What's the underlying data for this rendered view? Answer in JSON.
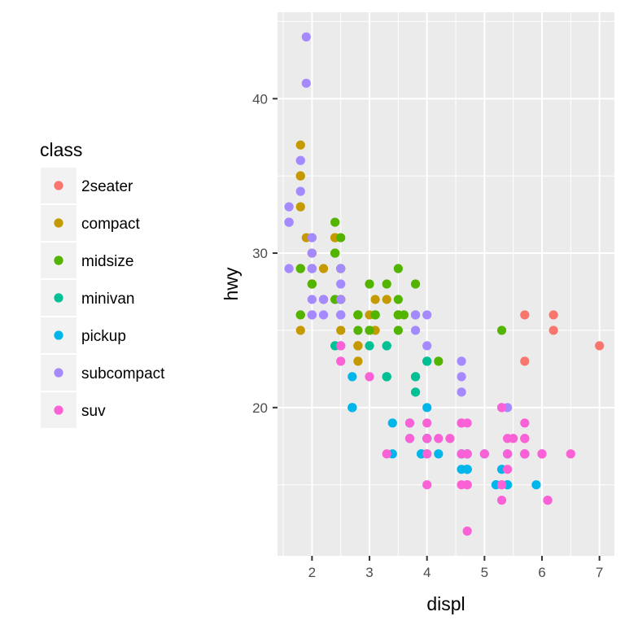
{
  "chart_data": {
    "type": "scatter",
    "xlabel": "displ",
    "ylabel": "hwy",
    "xlim": [
      1.4,
      7.26
    ],
    "ylim": [
      10.4,
      45.6
    ],
    "x_ticks": [
      2,
      3,
      4,
      5,
      6,
      7
    ],
    "y_ticks": [
      20,
      30,
      40
    ],
    "grid": true,
    "legend_title": "class",
    "legend_position": "left",
    "series": [
      {
        "name": "2seater",
        "color": "#F8766D",
        "points": [
          [
            5.7,
            26
          ],
          [
            5.7,
            23
          ],
          [
            6.2,
            26
          ],
          [
            6.2,
            25
          ],
          [
            7.0,
            24
          ]
        ]
      },
      {
        "name": "compact",
        "color": "#C49A00",
        "points": [
          [
            1.8,
            29
          ],
          [
            1.8,
            29
          ],
          [
            2.0,
            31
          ],
          [
            2.0,
            30
          ],
          [
            2.8,
            26
          ],
          [
            2.8,
            26
          ],
          [
            3.1,
            27
          ],
          [
            1.8,
            26
          ],
          [
            1.8,
            25
          ],
          [
            2.0,
            28
          ],
          [
            2.0,
            28
          ],
          [
            2.8,
            24
          ],
          [
            2.8,
            24
          ],
          [
            3.1,
            25
          ],
          [
            2.2,
            27
          ],
          [
            2.2,
            29
          ],
          [
            2.4,
            31
          ],
          [
            2.4,
            31
          ],
          [
            3.0,
            26
          ],
          [
            1.8,
            37
          ],
          [
            1.8,
            35
          ],
          [
            1.9,
            31
          ],
          [
            2.0,
            29
          ],
          [
            2.4,
            31
          ],
          [
            2.4,
            30
          ],
          [
            2.5,
            27
          ],
          [
            2.5,
            27
          ],
          [
            1.8,
            33
          ],
          [
            1.8,
            35
          ],
          [
            2.0,
            26
          ],
          [
            2.5,
            25
          ],
          [
            2.5,
            27
          ],
          [
            2.8,
            24
          ],
          [
            2.8,
            23
          ],
          [
            3.3,
            27
          ],
          [
            2.0,
            30
          ],
          [
            2.8,
            26
          ]
        ]
      },
      {
        "name": "midsize",
        "color": "#53B400",
        "points": [
          [
            2.8,
            26
          ],
          [
            3.1,
            26
          ],
          [
            4.2,
            23
          ],
          [
            2.4,
            30
          ],
          [
            2.4,
            32
          ],
          [
            3.1,
            26
          ],
          [
            3.5,
            26
          ],
          [
            3.6,
            26
          ],
          [
            2.5,
            29
          ],
          [
            2.5,
            29
          ],
          [
            3.5,
            29
          ],
          [
            3.3,
            28
          ],
          [
            3.5,
            26
          ],
          [
            3.8,
            26
          ],
          [
            3.8,
            28
          ],
          [
            3.0,
            25
          ],
          [
            5.3,
            25
          ],
          [
            2.4,
            27
          ],
          [
            2.4,
            30
          ],
          [
            2.5,
            31
          ],
          [
            3.0,
            28
          ],
          [
            3.5,
            25
          ],
          [
            3.5,
            27
          ],
          [
            1.8,
            29
          ],
          [
            2.0,
            28
          ],
          [
            2.0,
            29
          ],
          [
            2.8,
            26
          ],
          [
            3.1,
            26
          ],
          [
            1.8,
            26
          ],
          [
            2.8,
            25
          ],
          [
            3.0,
            25
          ],
          [
            3.5,
            26
          ]
        ]
      },
      {
        "name": "minivan",
        "color": "#00C094",
        "points": [
          [
            2.4,
            24
          ],
          [
            3.0,
            24
          ],
          [
            3.3,
            22
          ],
          [
            3.3,
            22
          ],
          [
            3.3,
            24
          ],
          [
            3.3,
            24
          ],
          [
            3.8,
            22
          ],
          [
            3.8,
            22
          ],
          [
            3.8,
            21
          ],
          [
            4.0,
            23
          ],
          [
            4.0,
            23
          ]
        ]
      },
      {
        "name": "pickup",
        "color": "#00B6EB",
        "points": [
          [
            2.7,
            20
          ],
          [
            2.7,
            20
          ],
          [
            2.7,
            22
          ],
          [
            3.4,
            19
          ],
          [
            3.4,
            17
          ],
          [
            4.0,
            18
          ],
          [
            4.0,
            20
          ],
          [
            4.7,
            17
          ],
          [
            4.7,
            16
          ],
          [
            4.7,
            16
          ],
          [
            5.7,
            17
          ],
          [
            3.7,
            19
          ],
          [
            3.7,
            18
          ],
          [
            3.9,
            17
          ],
          [
            3.9,
            17
          ],
          [
            4.7,
            17
          ],
          [
            4.7,
            16
          ],
          [
            4.7,
            16
          ],
          [
            5.2,
            15
          ],
          [
            5.2,
            15
          ],
          [
            5.7,
            17
          ],
          [
            5.9,
            15
          ],
          [
            4.2,
            17
          ],
          [
            4.6,
            16
          ],
          [
            4.6,
            17
          ],
          [
            5.4,
            15
          ],
          [
            5.4,
            17
          ],
          [
            4.0,
            18
          ],
          [
            4.0,
            18
          ],
          [
            4.6,
            17
          ],
          [
            5.0,
            17
          ],
          [
            5.3,
            16
          ],
          [
            5.4,
            15
          ],
          [
            2.7,
            20
          ],
          [
            4.0,
            17
          ]
        ]
      },
      {
        "name": "subcompact",
        "color": "#A58AFF",
        "points": [
          [
            3.8,
            26
          ],
          [
            3.8,
            25
          ],
          [
            4.0,
            26
          ],
          [
            4.0,
            24
          ],
          [
            4.6,
            21
          ],
          [
            4.6,
            22
          ],
          [
            4.6,
            23
          ],
          [
            5.4,
            20
          ],
          [
            1.6,
            33
          ],
          [
            1.6,
            32
          ],
          [
            1.6,
            32
          ],
          [
            1.6,
            29
          ],
          [
            1.6,
            32
          ],
          [
            1.8,
            34
          ],
          [
            1.8,
            36
          ],
          [
            1.8,
            36
          ],
          [
            2.0,
            29
          ],
          [
            2.0,
            26
          ],
          [
            2.0,
            27
          ],
          [
            2.0,
            30
          ],
          [
            2.0,
            31
          ],
          [
            2.5,
            26
          ],
          [
            2.5,
            26
          ],
          [
            2.5,
            28
          ],
          [
            2.5,
            26
          ],
          [
            2.5,
            29
          ],
          [
            2.2,
            26
          ],
          [
            2.2,
            27
          ],
          [
            2.5,
            24
          ],
          [
            2.5,
            24
          ],
          [
            1.9,
            44
          ],
          [
            1.9,
            41
          ],
          [
            2.0,
            29
          ],
          [
            2.0,
            26
          ],
          [
            2.5,
            27
          ]
        ]
      },
      {
        "name": "suv",
        "color": "#FB61D7",
        "points": [
          [
            5.3,
            20
          ],
          [
            5.3,
            15
          ],
          [
            5.3,
            20
          ],
          [
            5.7,
            17
          ],
          [
            6.0,
            17
          ],
          [
            5.7,
            19
          ],
          [
            6.5,
            17
          ],
          [
            5.3,
            14
          ],
          [
            5.3,
            15
          ],
          [
            5.7,
            17
          ],
          [
            6.0,
            17
          ],
          [
            3.7,
            19
          ],
          [
            3.7,
            18
          ],
          [
            4.7,
            17
          ],
          [
            4.7,
            19
          ],
          [
            4.7,
            12
          ],
          [
            5.7,
            17
          ],
          [
            6.1,
            14
          ],
          [
            4.0,
            18
          ],
          [
            4.0,
            15
          ],
          [
            4.2,
            18
          ],
          [
            4.4,
            18
          ],
          [
            4.6,
            19
          ],
          [
            5.4,
            17
          ],
          [
            5.4,
            18
          ],
          [
            5.4,
            16
          ],
          [
            4.0,
            17
          ],
          [
            4.6,
            17
          ],
          [
            4.7,
            15
          ],
          [
            4.7,
            15
          ],
          [
            5.7,
            18
          ],
          [
            5.7,
            18
          ],
          [
            6.1,
            14
          ],
          [
            4.6,
            19
          ],
          [
            5.0,
            17
          ],
          [
            5.5,
            18
          ],
          [
            3.0,
            22
          ],
          [
            2.5,
            23
          ],
          [
            2.5,
            24
          ],
          [
            3.3,
            17
          ],
          [
            4.0,
            19
          ],
          [
            4.6,
            15
          ]
        ]
      }
    ]
  }
}
